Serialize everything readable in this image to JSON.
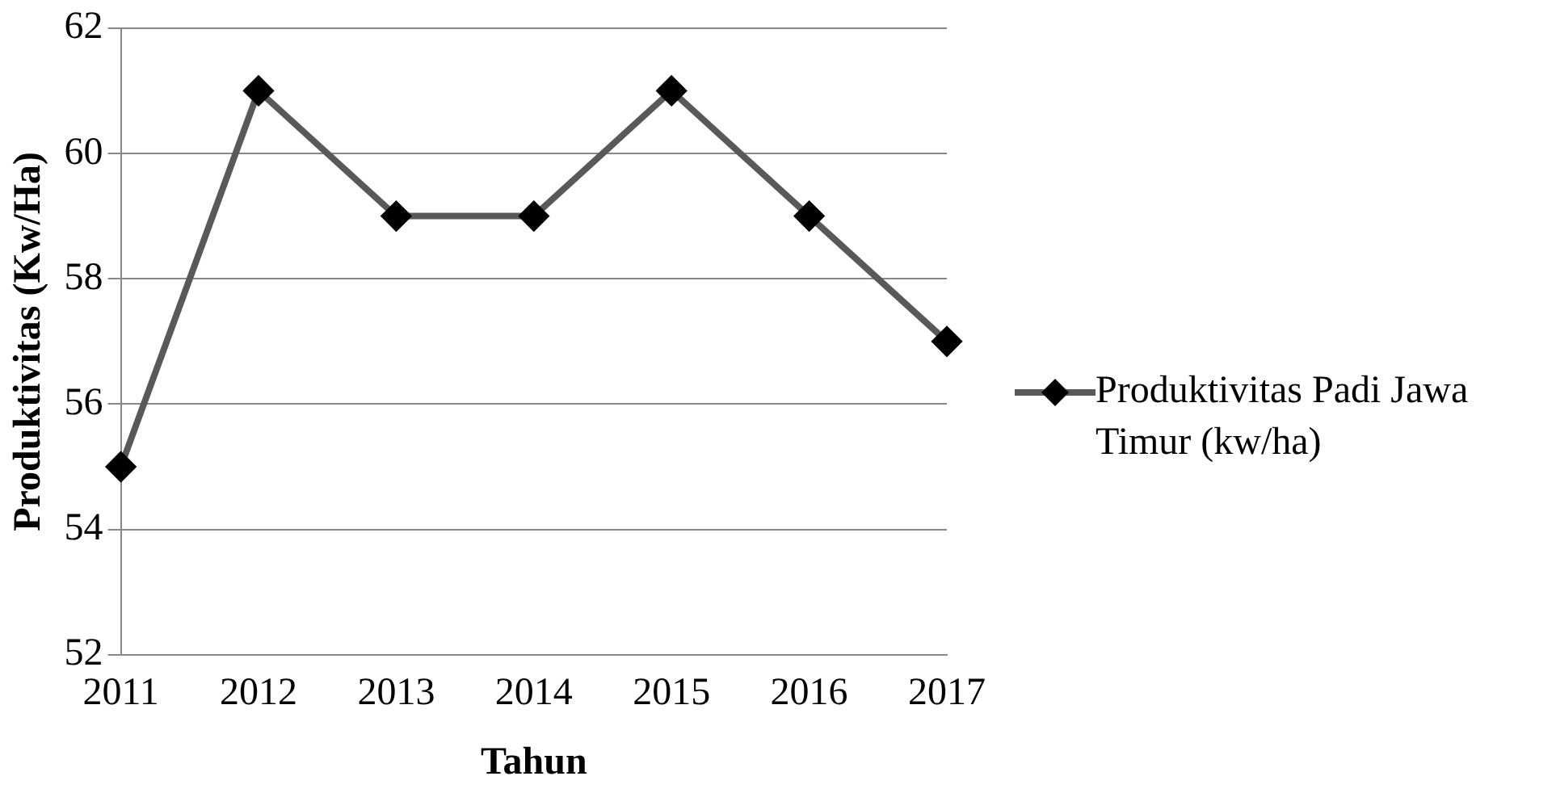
{
  "chart_data": {
    "type": "line",
    "xlabel": "Tahun",
    "ylabel": "Produktivitas (Kw/Ha)",
    "categories": [
      "2011",
      "2012",
      "2013",
      "2014",
      "2015",
      "2016",
      "2017"
    ],
    "series": [
      {
        "name": "Produktivitas Padi Jawa Timur (kw/ha)",
        "color": "#595959",
        "values": [
          55,
          61,
          59,
          59,
          61,
          59,
          57
        ]
      }
    ],
    "ylim": [
      52,
      62
    ],
    "yticks": [
      52,
      54,
      56,
      58,
      60,
      62
    ],
    "grid": "y",
    "legend": "right",
    "marker": "diamond",
    "line_style": "solid"
  }
}
